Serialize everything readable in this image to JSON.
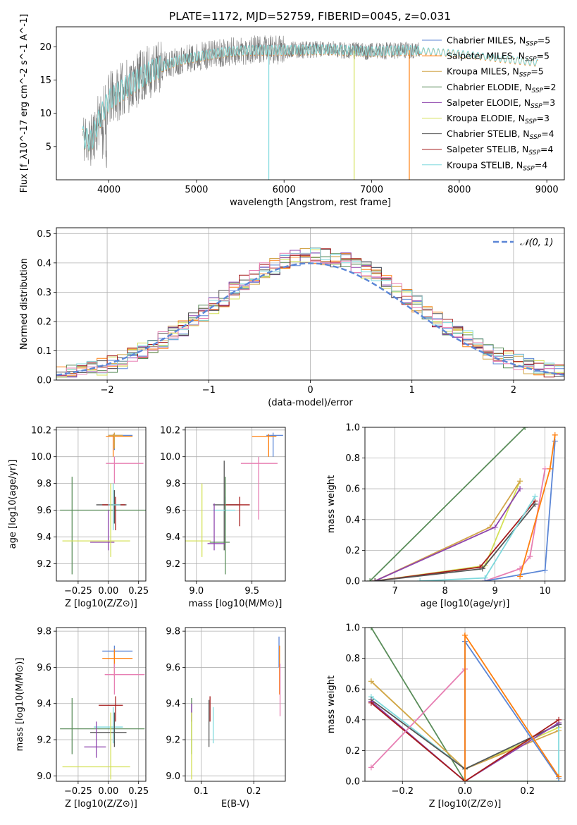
{
  "title": "PLATE=1172, MJD=52759, FIBERID=0045, z=0.031",
  "colors": {
    "Chabrier MILES": "#5b86d6",
    "Salpeter MILES": "#ff7f0e",
    "Kroupa MILES": "#d2a54a",
    "Chabrier ELODIE": "#5a8d5a",
    "Salpeter ELODIE": "#8e44ad",
    "Kroupa ELODIE": "#d4e157",
    "Chabrier STELIB": "#555555",
    "Salpeter STELIB": "#a51c1c",
    "Kroupa STELIB": "#7fd9dd",
    "pink": "#e77fb3"
  },
  "chart_data": [
    {
      "type": "line",
      "name": "spectrum",
      "xlabel": "wavelength [Angstrom, rest frame]",
      "ylabel": "Flux [f_λ10^-17 erg cm^-2 s^-1 A^-1]",
      "xlim": [
        3400,
        9200
      ],
      "ylim": [
        0,
        23
      ],
      "xticks": [
        4000,
        5000,
        6000,
        7000,
        8000,
        9000
      ],
      "yticks": [
        5,
        10,
        15,
        20
      ],
      "grid": false,
      "legend_position": "top-right",
      "legend": [
        {
          "name": "Chabrier MILES",
          "ssp": "5"
        },
        {
          "name": "Salpeter MILES",
          "ssp": "5"
        },
        {
          "name": "Kroupa MILES",
          "ssp": "5"
        },
        {
          "name": "Chabrier ELODIE",
          "ssp": "2"
        },
        {
          "name": "Salpeter ELODIE",
          "ssp": "3"
        },
        {
          "name": "Kroupa ELODIE",
          "ssp": "3"
        },
        {
          "name": "Chabrier STELIB",
          "ssp": "4"
        },
        {
          "name": "Salpeter STELIB",
          "ssp": "4"
        },
        {
          "name": "Kroupa STELIB",
          "ssp": "4"
        }
      ],
      "continuum": {
        "x": [
          3700,
          3800,
          3900,
          4000,
          4200,
          4500,
          4800,
          5000,
          5300,
          5600,
          6000,
          6500,
          7000,
          7400,
          7700,
          8000,
          8500,
          8900
        ],
        "y": [
          6.5,
          5.8,
          9.5,
          12.0,
          14.0,
          16.5,
          18.0,
          18.5,
          19.2,
          19.5,
          19.5,
          19.6,
          19.3,
          19.5,
          19.3,
          19.0,
          18.2,
          17.6
        ]
      }
    },
    {
      "type": "bar",
      "name": "residual-histogram",
      "xlabel": "(data-model)/error",
      "ylabel": "Normed distribution",
      "xlim": [
        -2.5,
        2.5
      ],
      "ylim": [
        0,
        0.52
      ],
      "xticks": [
        -2,
        -1,
        0,
        1,
        2
      ],
      "yticks": [
        0.0,
        0.1,
        0.2,
        0.3,
        0.4,
        0.5
      ],
      "grid": true,
      "legend_position": "top-right",
      "gaussian_label": "𝒩(0, 1)"
    },
    {
      "type": "scatter",
      "name": "age-vs-Z",
      "xlabel": "Z [log10(Z/Z⊙)]",
      "ylabel": "age [log10(age/yr)]",
      "xlim": [
        -0.43,
        0.31
      ],
      "ylim": [
        9.07,
        10.22
      ],
      "xticks": [
        -0.25,
        0.0,
        0.25
      ],
      "yticks": [
        9.2,
        9.4,
        9.6,
        9.8,
        10.0,
        10.2
      ],
      "grid": true,
      "points": [
        {
          "series": "Chabrier MILES",
          "x": 0.05,
          "xlo": 0.0,
          "xhi": 0.2,
          "y": 10.16,
          "ylo": 10.05,
          "yhi": 10.18
        },
        {
          "series": "Salpeter MILES",
          "x": 0.04,
          "xlo": -0.02,
          "xhi": 0.2,
          "y": 10.15,
          "ylo": 10.0,
          "yhi": 10.17
        },
        {
          "series": "Kroupa MILES",
          "x": 0.05,
          "xlo": 0.0,
          "xhi": 0.12,
          "y": 10.16,
          "ylo": 10.06,
          "yhi": 10.18
        },
        {
          "series": "pink",
          "x": 0.05,
          "xlo": -0.02,
          "xhi": 0.29,
          "y": 9.95,
          "ylo": 9.8,
          "yhi": 10.0
        },
        {
          "series": "Chabrier ELODIE",
          "x": -0.3,
          "xlo": -0.4,
          "xhi": 0.31,
          "y": 9.6,
          "ylo": 9.12,
          "yhi": 9.85
        },
        {
          "series": "Chabrier STELIB",
          "x": 0.05,
          "xlo": -0.1,
          "xhi": 0.15,
          "y": 9.64,
          "ylo": 9.5,
          "yhi": 9.75
        },
        {
          "series": "Salpeter STELIB",
          "x": 0.06,
          "xlo": -0.05,
          "xhi": 0.14,
          "y": 9.64,
          "ylo": 9.45,
          "yhi": 9.7
        },
        {
          "series": "Kroupa STELIB",
          "x": 0.04,
          "xlo": 0.0,
          "xhi": 0.1,
          "y": 9.64,
          "ylo": 9.45,
          "yhi": 9.8
        },
        {
          "series": "Salpeter ELODIE",
          "x": 0.0,
          "xlo": -0.15,
          "xhi": 0.05,
          "y": 9.36,
          "ylo": 9.3,
          "yhi": 9.6
        },
        {
          "series": "Kroupa ELODIE",
          "x": 0.02,
          "xlo": -0.38,
          "xhi": 0.18,
          "y": 9.37,
          "ylo": 9.25,
          "yhi": 9.8
        }
      ]
    },
    {
      "type": "scatter",
      "name": "age-vs-mass",
      "xlabel": "mass [log10(M/M⊙)]",
      "ylabel": "",
      "xlim": [
        8.9,
        9.8
      ],
      "ylim": [
        9.07,
        10.22
      ],
      "xticks": [
        9.0,
        9.5
      ],
      "yticks": [
        9.2,
        9.4,
        9.6,
        9.8,
        10.0,
        10.2
      ],
      "grid": true,
      "points": [
        {
          "series": "Chabrier MILES",
          "x": 9.69,
          "xlo": 9.63,
          "xhi": 9.78,
          "y": 10.16,
          "ylo": 10.0,
          "yhi": 10.18
        },
        {
          "series": "Salpeter MILES",
          "x": 9.65,
          "xlo": 9.5,
          "xhi": 9.72,
          "y": 10.15,
          "ylo": 10.0,
          "yhi": 10.17
        },
        {
          "series": "pink",
          "x": 9.56,
          "xlo": 9.4,
          "xhi": 9.73,
          "y": 9.95,
          "ylo": 9.53,
          "yhi": 10.0
        },
        {
          "series": "Chabrier STELIB",
          "x": 9.25,
          "xlo": 9.15,
          "xhi": 9.38,
          "y": 9.64,
          "ylo": 9.3,
          "yhi": 9.97
        },
        {
          "series": "Salpeter STELIB",
          "x": 9.39,
          "xlo": 9.25,
          "xhi": 9.48,
          "y": 9.64,
          "ylo": 9.48,
          "yhi": 9.7
        },
        {
          "series": "Kroupa STELIB",
          "x": 9.26,
          "xlo": 9.15,
          "xhi": 9.35,
          "y": 9.6,
          "ylo": 9.45,
          "yhi": 9.7
        },
        {
          "series": "Salpeter ELODIE",
          "x": 9.16,
          "xlo": 9.1,
          "xhi": 9.26,
          "y": 9.35,
          "ylo": 9.3,
          "yhi": 9.65
        },
        {
          "series": "Chabrier ELODIE",
          "x": 9.26,
          "xlo": 9.12,
          "xhi": 9.3,
          "y": 9.36,
          "ylo": 9.12,
          "yhi": 9.85
        },
        {
          "series": "Kroupa ELODIE",
          "x": 9.05,
          "xlo": 8.9,
          "xhi": 9.13,
          "y": 9.37,
          "ylo": 9.25,
          "yhi": 9.8
        }
      ]
    },
    {
      "type": "line",
      "name": "mass-weight-vs-age",
      "xlabel": "age [log10(age/yr)]",
      "ylabel": "mass weight",
      "xlim": [
        6.4,
        10.4
      ],
      "ylim": [
        0,
        1.0
      ],
      "xticks": [
        7,
        8,
        9,
        10
      ],
      "yticks": [
        0.0,
        0.2,
        0.4,
        0.6,
        0.8,
        1.0
      ],
      "grid": true,
      "series": [
        {
          "name": "Chabrier ELODIE",
          "x": [
            6.5,
            9.6
          ],
          "y": [
            0.0,
            1.0
          ]
        },
        {
          "name": "Kroupa ELODIE",
          "x": [
            6.6,
            8.8,
            9.5
          ],
          "y": [
            0.0,
            0.1,
            0.65
          ]
        },
        {
          "name": "Kroupa MILES",
          "x": [
            6.6,
            8.9,
            9.5
          ],
          "y": [
            0.0,
            0.35,
            0.65
          ]
        },
        {
          "name": "Salpeter ELODIE",
          "x": [
            6.6,
            9.0,
            9.5
          ],
          "y": [
            0.0,
            0.35,
            0.6
          ]
        },
        {
          "name": "Salpeter STELIB",
          "x": [
            6.6,
            8.7,
            9.8
          ],
          "y": [
            0.0,
            0.09,
            0.52
          ]
        },
        {
          "name": "Chabrier STELIB",
          "x": [
            6.6,
            8.75,
            9.8
          ],
          "y": [
            0.0,
            0.08,
            0.5
          ]
        },
        {
          "name": "Kroupa STELIB",
          "x": [
            7.5,
            8.8,
            9.8
          ],
          "y": [
            0.0,
            0.02,
            0.55
          ]
        },
        {
          "name": "pink",
          "x": [
            8.8,
            9.5,
            9.7,
            10.0
          ],
          "y": [
            0.0,
            0.08,
            0.16,
            0.73
          ]
        },
        {
          "name": "Chabrier MILES",
          "x": [
            8.8,
            10.0,
            10.2
          ],
          "y": [
            0.0,
            0.07,
            0.91
          ]
        },
        {
          "name": "Salpeter MILES",
          "x": [
            9.5,
            10.1,
            10.2
          ],
          "y": [
            0.03,
            0.73,
            0.95
          ]
        }
      ]
    },
    {
      "type": "scatter",
      "name": "mass-vs-Z",
      "xlabel": "Z [log10(Z/Z⊙)]",
      "ylabel": "mass [log10(M/M⊙)]",
      "xlim": [
        -0.43,
        0.31
      ],
      "ylim": [
        8.97,
        9.82
      ],
      "xticks": [
        -0.25,
        0.0,
        0.25
      ],
      "yticks": [
        9.0,
        9.2,
        9.4,
        9.6,
        9.8
      ],
      "grid": true,
      "points": [
        {
          "series": "Chabrier MILES",
          "x": 0.05,
          "xlo": -0.05,
          "xhi": 0.2,
          "y": 9.69,
          "ylo": 9.6,
          "yhi": 9.72
        },
        {
          "series": "Salpeter MILES",
          "x": 0.05,
          "xlo": -0.05,
          "xhi": 0.2,
          "y": 9.65,
          "ylo": 9.55,
          "yhi": 9.7
        },
        {
          "series": "pink",
          "x": 0.05,
          "xlo": -0.03,
          "xhi": 0.3,
          "y": 9.56,
          "ylo": 9.45,
          "yhi": 9.62
        },
        {
          "series": "Salpeter STELIB",
          "x": 0.06,
          "xlo": -0.08,
          "xhi": 0.12,
          "y": 9.39,
          "ylo": 9.3,
          "yhi": 9.44
        },
        {
          "series": "Kroupa STELIB",
          "x": 0.04,
          "xlo": -0.12,
          "xhi": 0.12,
          "y": 9.27,
          "ylo": 9.18,
          "yhi": 9.38
        },
        {
          "series": "Chabrier ELODIE",
          "x": -0.3,
          "xlo": -0.4,
          "xhi": 0.3,
          "y": 9.26,
          "ylo": 9.12,
          "yhi": 9.43
        },
        {
          "series": "Chabrier STELIB",
          "x": 0.05,
          "xlo": -0.15,
          "xhi": 0.15,
          "y": 9.24,
          "ylo": 9.16,
          "yhi": 9.35
        },
        {
          "series": "Salpeter ELODIE",
          "x": -0.1,
          "xlo": -0.2,
          "xhi": -0.02,
          "y": 9.16,
          "ylo": 9.1,
          "yhi": 9.3
        },
        {
          "series": "Kroupa ELODIE",
          "x": 0.02,
          "xlo": -0.38,
          "xhi": 0.18,
          "y": 9.05,
          "ylo": 8.98,
          "yhi": 9.35
        }
      ]
    },
    {
      "type": "scatter",
      "name": "mass-vs-ebv",
      "xlabel": "E(B-V)",
      "ylabel": "",
      "xlim": [
        0.07,
        0.26
      ],
      "ylim": [
        8.97,
        9.82
      ],
      "xticks": [
        0.1,
        0.2
      ],
      "yticks": [
        9.0,
        9.2,
        9.4,
        9.6,
        9.8
      ],
      "grid": true,
      "points": [
        {
          "series": "Chabrier ELODIE",
          "x": 0.082,
          "ylo": 9.12,
          "yhi": 9.43
        },
        {
          "series": "Salpeter ELODIE",
          "x": 0.082,
          "ylo": 9.3,
          "yhi": 9.4
        },
        {
          "series": "Kroupa ELODIE",
          "x": 0.082,
          "ylo": 8.98,
          "yhi": 9.35
        },
        {
          "series": "Chabrier STELIB",
          "x": 0.115,
          "ylo": 9.16,
          "yhi": 9.42
        },
        {
          "series": "Salpeter STELIB",
          "x": 0.117,
          "ylo": 9.3,
          "yhi": 9.44
        },
        {
          "series": "Kroupa STELIB",
          "x": 0.123,
          "ylo": 9.18,
          "yhi": 9.38
        },
        {
          "series": "Chabrier MILES",
          "x": 0.248,
          "ylo": 9.6,
          "yhi": 9.77
        },
        {
          "series": "Salpeter MILES",
          "x": 0.249,
          "ylo": 9.45,
          "yhi": 9.72
        },
        {
          "series": "pink",
          "x": 0.25,
          "ylo": 9.33,
          "yhi": 9.62
        }
      ]
    },
    {
      "type": "line",
      "name": "mass-weight-vs-Z",
      "xlabel": "Z [log10(Z/Z⊙)]",
      "ylabel": "mass weight",
      "xlim": [
        -0.32,
        0.32
      ],
      "ylim": [
        0,
        1.0
      ],
      "xticks": [
        -0.2,
        0.0,
        0.2
      ],
      "yticks": [
        0.0,
        0.2,
        0.4,
        0.6,
        0.8,
        1.0
      ],
      "grid": true,
      "series": [
        {
          "name": "Chabrier ELODIE",
          "x": [
            -0.3,
            0.0,
            0.3
          ],
          "y": [
            1.0,
            0.0,
            0.0
          ]
        },
        {
          "name": "Kroupa ELODIE",
          "x": [
            -0.3,
            0.0,
            0.3
          ],
          "y": [
            0.65,
            0.08,
            0.35
          ]
        },
        {
          "name": "Kroupa MILES",
          "x": [
            -0.3,
            0.0,
            0.3
          ],
          "y": [
            0.65,
            0.08,
            0.33
          ]
        },
        {
          "name": "Kroupa STELIB",
          "x": [
            -0.3,
            0.0,
            0.3,
            0.3
          ],
          "y": [
            0.55,
            0.08,
            0.37,
            0.0
          ]
        },
        {
          "name": "Chabrier STELIB",
          "x": [
            -0.3,
            0.0,
            0.3
          ],
          "y": [
            0.53,
            0.08,
            0.37
          ]
        },
        {
          "name": "Salpeter ELODIE",
          "x": [
            -0.3,
            0.0,
            0.3
          ],
          "y": [
            0.52,
            0.0,
            0.38
          ]
        },
        {
          "name": "Salpeter STELIB",
          "x": [
            -0.3,
            0.0,
            0.3
          ],
          "y": [
            0.51,
            0.0,
            0.4
          ]
        },
        {
          "name": "pink",
          "x": [
            -0.3,
            0.0,
            0.0
          ],
          "y": [
            0.09,
            0.73,
            0.0
          ]
        },
        {
          "name": "Chabrier MILES",
          "x": [
            0.0,
            0.0,
            0.3
          ],
          "y": [
            0.0,
            0.91,
            0.02
          ]
        },
        {
          "name": "Salpeter MILES",
          "x": [
            0.0,
            0.0,
            0.3
          ],
          "y": [
            0.0,
            0.95,
            0.03
          ]
        }
      ]
    }
  ]
}
